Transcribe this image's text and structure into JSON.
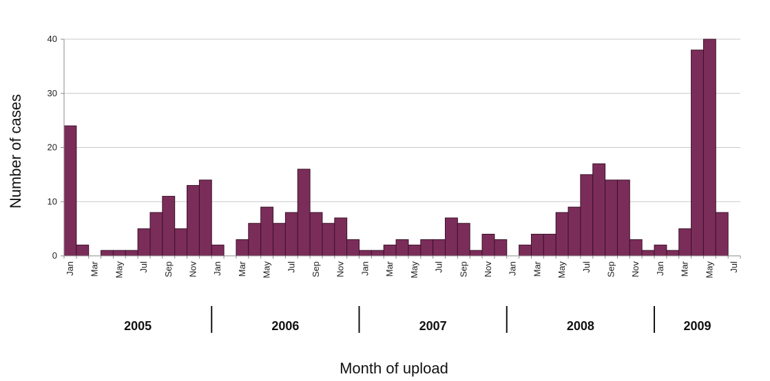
{
  "chart_data": {
    "type": "bar",
    "title": "",
    "xlabel": "Month of upload",
    "ylabel": "Number of cases",
    "ylim": [
      0,
      40
    ],
    "yticks": [
      "0",
      "10",
      "20",
      "30",
      "40"
    ],
    "grid": true,
    "bar_color": "#7b2d5a",
    "categories": [
      "Jan",
      "Feb",
      "Mar",
      "Apr",
      "May",
      "Jun",
      "Jul",
      "Aug",
      "Sep",
      "Oct",
      "Nov",
      "Dec",
      "Jan",
      "Feb",
      "Mar",
      "Apr",
      "May",
      "Jun",
      "Jul",
      "Aug",
      "Sep",
      "Oct",
      "Nov",
      "Dec",
      "Jan",
      "Feb",
      "Mar",
      "Apr",
      "May",
      "Jun",
      "Jul",
      "Aug",
      "Sep",
      "Oct",
      "Nov",
      "Dec",
      "Jan",
      "Feb",
      "Mar",
      "Apr",
      "May",
      "Jun",
      "Jul",
      "Aug",
      "Sep",
      "Oct",
      "Nov",
      "Dec",
      "Jan",
      "Feb",
      "Mar",
      "Apr",
      "May",
      "Jun",
      "Jul"
    ],
    "values": [
      24,
      2,
      0,
      1,
      1,
      1,
      5,
      8,
      11,
      5,
      13,
      14,
      2,
      0,
      3,
      6,
      9,
      6,
      8,
      16,
      8,
      6,
      7,
      3,
      1,
      1,
      2,
      3,
      2,
      3,
      3,
      7,
      6,
      1,
      4,
      3,
      0,
      2,
      4,
      4,
      8,
      9,
      15,
      17,
      14,
      14,
      3,
      1,
      2,
      1,
      5,
      38,
      40,
      8,
      0
    ],
    "tick_labels": [
      "Jan",
      "Mar",
      "May",
      "Jul",
      "Sep",
      "Nov",
      "Jan",
      "Mar",
      "May",
      "Jul",
      "Sep",
      "Nov",
      "Jan",
      "Mar",
      "May",
      "Jul",
      "Sep",
      "Nov",
      "Jan",
      "Mar",
      "May",
      "Jul",
      "Sep",
      "Nov",
      "Jan",
      "Mar",
      "May",
      "Jul"
    ],
    "years": [
      "2005",
      "2006",
      "2007",
      "2008",
      "2009"
    ]
  }
}
